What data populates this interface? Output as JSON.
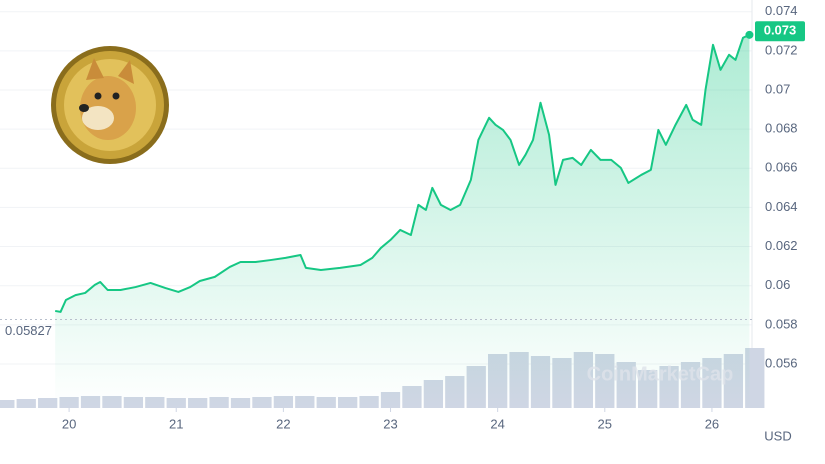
{
  "chart_data": {
    "type": "line",
    "x": [
      19.87,
      19.92,
      19.97,
      20.06,
      20.15,
      20.24,
      20.29,
      20.36,
      20.48,
      20.62,
      20.76,
      20.9,
      21.02,
      21.13,
      21.22,
      21.36,
      21.5,
      21.6,
      21.74,
      21.88,
      22.02,
      22.16,
      22.21,
      22.35,
      22.53,
      22.72,
      22.83,
      22.91,
      23.0,
      23.09,
      23.19,
      23.26,
      23.33,
      23.39,
      23.47,
      23.56,
      23.65,
      23.75,
      23.82,
      23.92,
      23.98,
      24.05,
      24.12,
      24.2,
      24.26,
      24.33,
      24.4,
      24.48,
      24.54,
      24.61,
      24.7,
      24.78,
      24.87,
      24.96,
      25.06,
      25.15,
      25.22,
      25.34,
      25.43,
      25.5,
      25.57,
      25.66,
      25.76,
      25.82,
      25.9,
      25.94,
      26.01,
      26.08,
      26.16,
      26.22,
      26.29,
      26.35
    ],
    "series": [
      {
        "color": "#16c784",
        "values": [
          0.05871,
          0.05866,
          0.05927,
          0.05952,
          0.05963,
          0.06004,
          0.06019,
          0.05978,
          0.05978,
          0.05993,
          0.06014,
          0.05988,
          0.05968,
          0.05993,
          0.06024,
          0.06045,
          0.06096,
          0.06121,
          0.06121,
          0.06131,
          0.06142,
          0.06157,
          0.06091,
          0.0608,
          0.06091,
          0.06106,
          0.06142,
          0.06193,
          0.06234,
          0.06285,
          0.06259,
          0.06413,
          0.06387,
          0.065,
          0.06413,
          0.06387,
          0.06413,
          0.06541,
          0.06745,
          0.06858,
          0.06822,
          0.06796,
          0.06745,
          0.06617,
          0.06669,
          0.06745,
          0.06935,
          0.06771,
          0.06515,
          0.06643,
          0.06653,
          0.06617,
          0.06694,
          0.06643,
          0.06643,
          0.06602,
          0.06525,
          0.06566,
          0.06592,
          0.06796,
          0.0672,
          0.06822,
          0.06924,
          0.06848,
          0.06822,
          0.07001,
          0.07231,
          0.07103,
          0.0718,
          0.07154,
          0.07267,
          0.07282
        ]
      }
    ],
    "volume": {
      "color": "#cfd6e4",
      "x": [
        19.4,
        19.6,
        19.8,
        20.0,
        20.2,
        20.4,
        20.6,
        20.8,
        21.0,
        21.2,
        21.4,
        21.6,
        21.8,
        22.0,
        22.2,
        22.4,
        22.6,
        22.8,
        23.0,
        23.2,
        23.4,
        23.6,
        23.8,
        24.0,
        24.2,
        24.4,
        24.6,
        24.8,
        25.0,
        25.2,
        25.4,
        25.6,
        25.8,
        26.0,
        26.2,
        26.4
      ],
      "values": [
        8,
        9,
        10,
        11,
        12,
        12,
        11,
        11,
        10,
        10,
        11,
        10,
        11,
        12,
        12,
        11,
        11,
        12,
        16,
        22,
        28,
        32,
        42,
        54,
        56,
        52,
        50,
        56,
        54,
        46,
        38,
        42,
        46,
        50,
        54,
        60
      ],
      "vlim": [
        0,
        100
      ]
    },
    "xlim": [
      19.355,
      26.374
    ],
    "xticks": [
      20,
      21,
      22,
      23,
      24,
      25,
      26
    ],
    "ylim": [
      0.05375,
      0.0746
    ],
    "yticks": [
      0.056,
      0.058,
      0.06,
      0.062,
      0.064,
      0.066,
      0.068,
      0.07,
      0.072,
      0.074
    ],
    "grid": true,
    "baseline": 0.05827,
    "current_price": 0.073,
    "y_axis_label": "USD",
    "watermark": "CoinMarketCap"
  }
}
